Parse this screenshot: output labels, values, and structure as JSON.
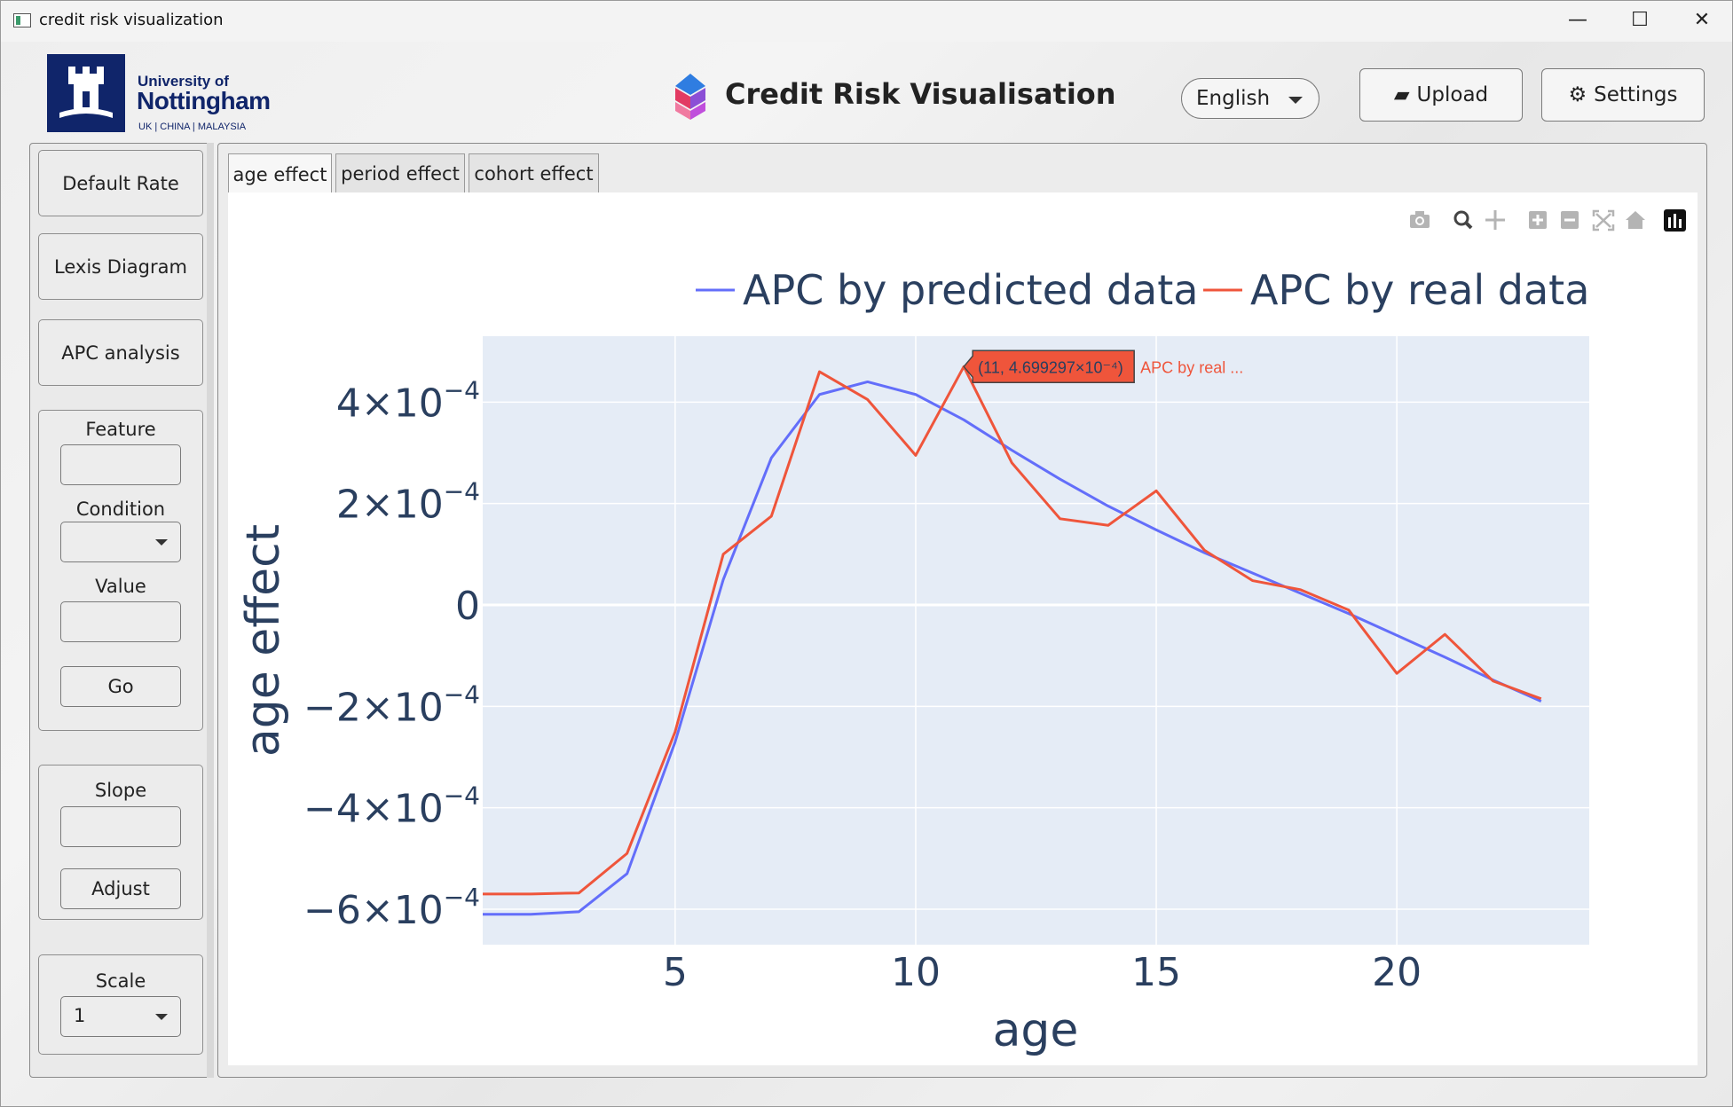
{
  "window": {
    "title": "credit risk visualization",
    "controls": {
      "minimize": "—",
      "maximize": "☐",
      "close": "✕"
    }
  },
  "header": {
    "logo": {
      "line1": "University of",
      "line2": "Nottingham",
      "line3": "UK | CHINA | MALAYSIA"
    },
    "app_title": "Credit Risk Visualisation",
    "language": "English",
    "upload_label": "Upload",
    "upload_icon": "▰",
    "settings_label": "Settings",
    "settings_icon": "⚙"
  },
  "sidebar": {
    "buttons": [
      "Default Rate",
      "Lexis Diagram",
      "APC analysis"
    ],
    "filter": {
      "feature_label": "Feature",
      "feature_value": "",
      "condition_label": "Condition",
      "condition_value": "",
      "value_label": "Value",
      "value_value": "",
      "go_label": "Go"
    },
    "slope": {
      "label": "Slope",
      "value": "",
      "adjust_label": "Adjust"
    },
    "scale": {
      "label": "Scale",
      "value": "1"
    }
  },
  "tabs": [
    {
      "label": "age effect",
      "active": true
    },
    {
      "label": "period effect",
      "active": false
    },
    {
      "label": "cohort effect",
      "active": false
    }
  ],
  "modebar_icons": [
    "camera-icon",
    "zoom-icon",
    "pan-icon",
    "zoom-in-icon",
    "zoom-out-icon",
    "autoscale-icon",
    "reset-axes-icon",
    "plotly-logo-icon"
  ],
  "tooltip": {
    "coords": "(11, 4.699297×10⁻⁴)",
    "series": "APC by real ..."
  },
  "chart_data": {
    "type": "line",
    "xlabel": "age",
    "ylabel": "age effect",
    "xlim": [
      1,
      24
    ],
    "ylim": [
      -0.00067,
      0.00053
    ],
    "x_ticks": [
      5,
      10,
      15,
      20
    ],
    "y_ticks": [
      {
        "value": 0.0004,
        "mant": "4×10",
        "exp": "−4"
      },
      {
        "value": 0.0002,
        "mant": "2×10",
        "exp": "−4"
      },
      {
        "value": 0,
        "mant": "0",
        "exp": ""
      },
      {
        "value": -0.0002,
        "mant": "−2×10",
        "exp": "−4"
      },
      {
        "value": -0.0004,
        "mant": "−4×10",
        "exp": "−4"
      },
      {
        "value": -0.0006,
        "mant": "−6×10",
        "exp": "−4"
      }
    ],
    "legend_position": "top-right",
    "grid": true,
    "series": [
      {
        "name": "APC by predicted data",
        "color": "#636efa",
        "x": [
          1,
          2,
          3,
          4,
          5,
          6,
          7,
          8,
          9,
          10,
          11,
          12,
          13,
          14,
          15,
          16,
          17,
          18,
          19,
          20,
          21,
          22,
          23
        ],
        "y": [
          -0.00061,
          -0.00061,
          -0.000605,
          -0.00053,
          -0.00027,
          5e-05,
          0.00029,
          0.000415,
          0.00044,
          0.000415,
          0.000365,
          0.000305,
          0.000248,
          0.000195,
          0.000148,
          0.000103,
          6.3e-05,
          2.3e-05,
          -1.7e-05,
          -6e-05,
          -0.000103,
          -0.000148,
          -0.00019
        ]
      },
      {
        "name": "APC by real data",
        "color": "#ef553b",
        "x": [
          1,
          2,
          3,
          4,
          5,
          6,
          7,
          8,
          9,
          10,
          11,
          12,
          13,
          14,
          15,
          16,
          17,
          18,
          19,
          20,
          21,
          22,
          23
        ],
        "y": [
          -0.00057,
          -0.00057,
          -0.000568,
          -0.00049,
          -0.00025,
          0.0001,
          0.000175,
          0.00046,
          0.000405,
          0.000295,
          0.00047,
          0.00028,
          0.00017,
          0.000157,
          0.000225,
          0.000108,
          4.8e-05,
          3e-05,
          -1e-05,
          -0.000135,
          -5.8e-05,
          -0.00015,
          -0.000185
        ]
      }
    ]
  }
}
